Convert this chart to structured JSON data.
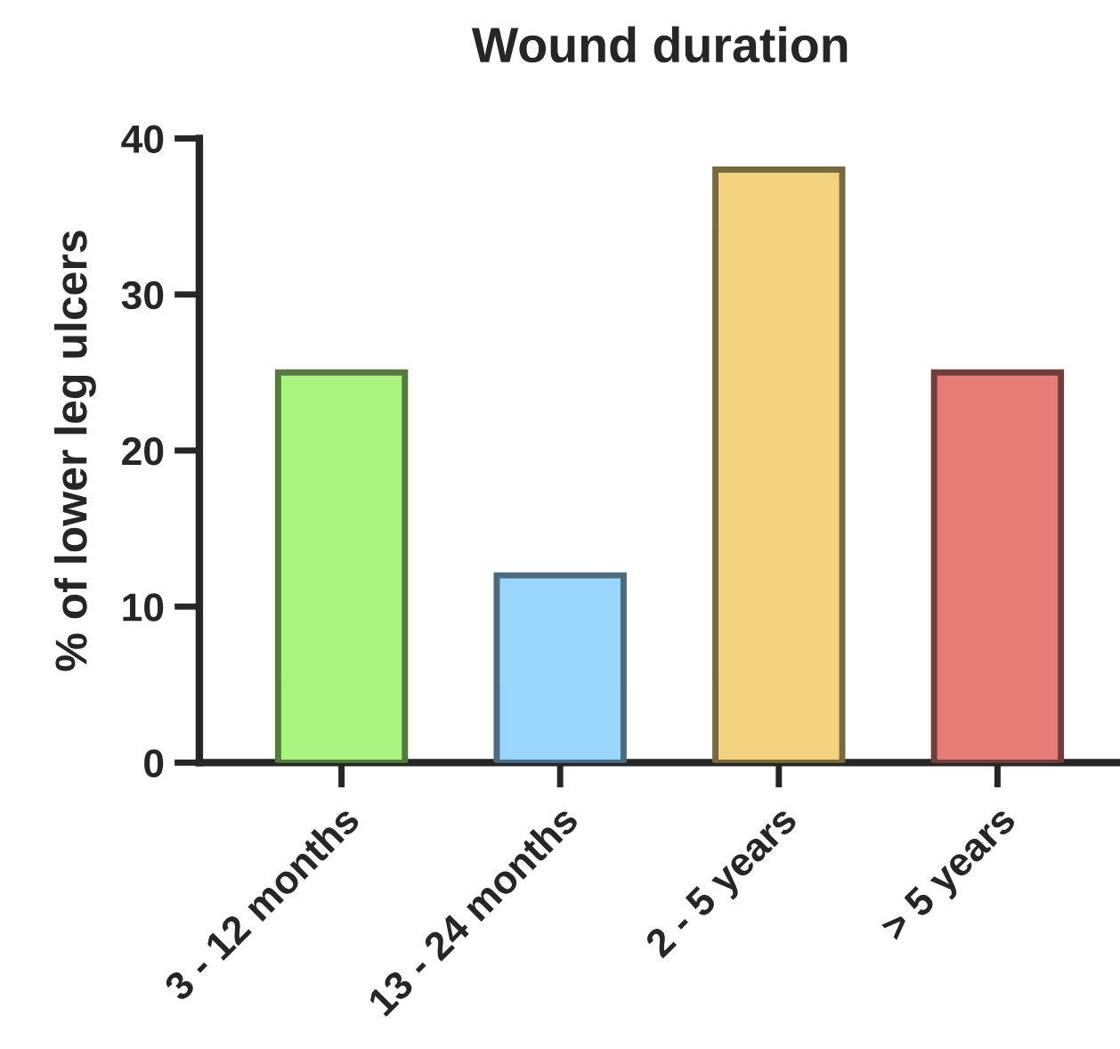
{
  "chart_data": {
    "type": "bar",
    "title": "Wound duration",
    "ylabel": "% of lower leg ulcers",
    "categories": [
      "3 - 12 months",
      "13 - 24 months",
      "2 - 5 years",
      "> 5 years"
    ],
    "values": [
      25,
      12,
      38,
      25
    ],
    "colors": [
      "#a8f47f",
      "#9ad5fd",
      "#f2d27f",
      "#e57c77"
    ],
    "ylim": [
      0,
      40
    ],
    "yticks": [
      0,
      10,
      20,
      30,
      40
    ],
    "grid": false,
    "legend": false
  }
}
